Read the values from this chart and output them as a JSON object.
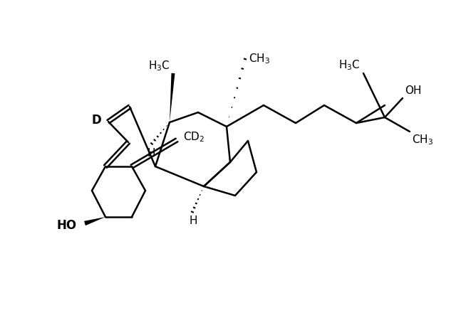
{
  "figsize": [
    6.4,
    4.71
  ],
  "dpi": 100,
  "bg": "#ffffff",
  "lc": "#000000",
  "lw": 1.8,
  "fs": 11
}
